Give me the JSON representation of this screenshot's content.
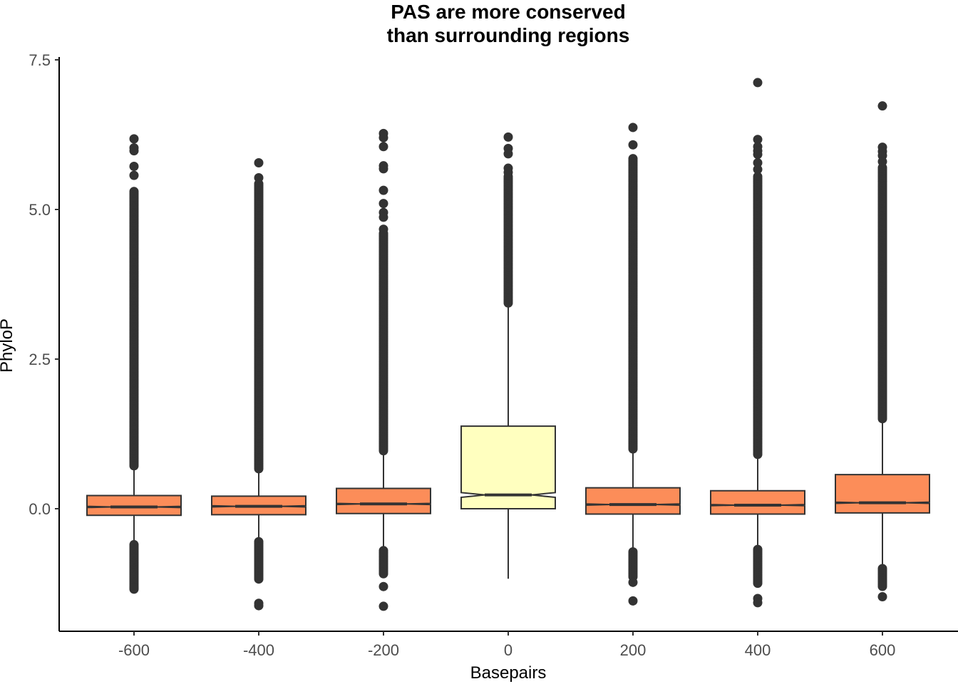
{
  "chart_data": {
    "type": "boxplot",
    "title_lines": [
      "PAS are more conserved",
      "than surrounding regions"
    ],
    "xlabel": "Basepairs",
    "ylabel": "PhyloP",
    "ylim": [
      -2.05,
      7.55
    ],
    "yticks": [
      0.0,
      2.5,
      5.0,
      7.5
    ],
    "ytick_labels": [
      "0.0",
      "2.5",
      "5.0",
      "7.5"
    ],
    "categories": [
      "-600",
      "-400",
      "-200",
      "0",
      "200",
      "400",
      "600"
    ],
    "boxes": [
      {
        "x": "-600",
        "q1": -0.11,
        "median": 0.03,
        "q3": 0.22,
        "notch_low": 0.02,
        "notch_high": 0.04,
        "whisker_low": -0.6,
        "whisker_high": 0.7,
        "outliers_high_band": [
          0.7,
          5.3
        ],
        "outliers_low_band": [
          -1.35,
          -0.6
        ],
        "outliers": [
          6.18,
          6.03,
          5.98,
          5.72,
          5.57,
          -1.32
        ]
      },
      {
        "x": "-400",
        "q1": -0.1,
        "median": 0.04,
        "q3": 0.21,
        "notch_low": 0.03,
        "notch_high": 0.05,
        "whisker_low": -0.55,
        "whisker_high": 0.65,
        "outliers_high_band": [
          0.65,
          5.43
        ],
        "outliers_low_band": [
          -1.2,
          -0.55
        ],
        "outliers": [
          5.78,
          5.53,
          -1.58,
          -1.62
        ]
      },
      {
        "x": "-200",
        "q1": -0.08,
        "median": 0.08,
        "q3": 0.34,
        "notch_low": 0.07,
        "notch_high": 0.09,
        "whisker_low": -0.7,
        "whisker_high": 0.95,
        "outliers_high_band": [
          0.95,
          4.6
        ],
        "outliers_low_band": [
          -1.1,
          -0.7
        ],
        "outliers": [
          6.27,
          6.2,
          6.05,
          5.73,
          5.68,
          5.32,
          5.1,
          4.95,
          4.87,
          4.67,
          -1.3,
          -1.63
        ]
      },
      {
        "x": "0",
        "q1": 0.0,
        "median": 0.23,
        "q3": 1.38,
        "notch_low": 0.19,
        "notch_high": 0.27,
        "whisker_low": -1.17,
        "whisker_high": 3.42,
        "outliers_high_band": [
          3.42,
          5.55
        ],
        "outliers_low_band": null,
        "outliers": [
          6.21,
          6.02,
          5.93,
          5.69,
          5.62
        ]
      },
      {
        "x": "200",
        "q1": -0.09,
        "median": 0.07,
        "q3": 0.35,
        "notch_low": 0.06,
        "notch_high": 0.08,
        "whisker_low": -0.72,
        "whisker_high": 0.98,
        "outliers_high_band": [
          0.98,
          5.85
        ],
        "outliers_low_band": [
          -1.15,
          -0.72
        ],
        "outliers": [
          6.37,
          6.08,
          -1.23,
          -1.54
        ]
      },
      {
        "x": "400",
        "q1": -0.09,
        "median": 0.06,
        "q3": 0.3,
        "notch_low": 0.05,
        "notch_high": 0.07,
        "whisker_low": -0.68,
        "whisker_high": 0.88,
        "outliers_high_band": [
          0.88,
          5.55
        ],
        "outliers_low_band": [
          -1.25,
          -0.68
        ],
        "outliers": [
          7.12,
          6.17,
          6.05,
          5.98,
          5.92,
          5.78,
          5.67,
          -1.5,
          -1.57
        ]
      },
      {
        "x": "600",
        "q1": -0.07,
        "median": 0.1,
        "q3": 0.57,
        "notch_low": 0.09,
        "notch_high": 0.11,
        "whisker_low": -1.0,
        "whisker_high": 1.5,
        "outliers_high_band": [
          1.5,
          5.7
        ],
        "outliers_low_band": [
          -1.3,
          -1.0
        ],
        "outliers": [
          6.73,
          6.04,
          5.97,
          5.9,
          5.8,
          -1.47
        ]
      }
    ],
    "highlight_category": "0",
    "colors": {
      "box_fill": "#fc8d59",
      "highlight_fill": "#ffffbf",
      "stroke": "#333333",
      "point": "#333333"
    },
    "grid": false,
    "legend": "none"
  }
}
